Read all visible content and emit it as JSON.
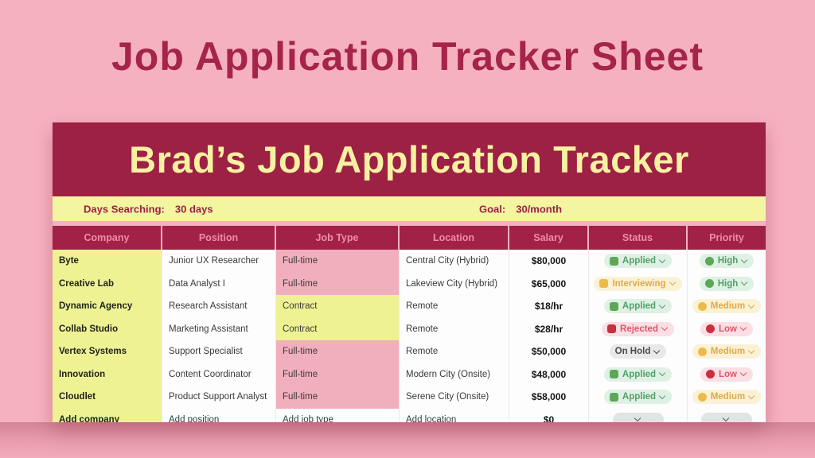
{
  "page": {
    "title": "Job Application Tracker Sheet"
  },
  "sheet": {
    "banner_title": "Brad’s Job Application Tracker",
    "info_bar": {
      "days_label": "Days Searching:",
      "days_value": "30 days",
      "goal_label": "Goal:",
      "goal_value": "30/month"
    },
    "table": {
      "headers": [
        "Company",
        "Position",
        "Job Type",
        "Location",
        "Salary",
        "Status",
        "Priority"
      ],
      "rows": [
        {
          "company": "Byte",
          "position": "Junior UX Researcher",
          "job_type": "Full-time",
          "job_type_variant": "pink",
          "location": "Central City (Hybrid)",
          "salary": "$80,000",
          "status": {
            "label": "Applied",
            "variant": "green",
            "icon": true
          },
          "priority": {
            "label": "High",
            "variant": "green",
            "icon": true
          }
        },
        {
          "company": "Creative Lab",
          "position": "Data Analyst I",
          "job_type": "Full-time",
          "job_type_variant": "pink",
          "location": "Lakeview City (Hybrid)",
          "salary": "$65,000",
          "status": {
            "label": "Interviewing",
            "variant": "amber",
            "icon": true
          },
          "priority": {
            "label": "High",
            "variant": "green",
            "icon": true
          }
        },
        {
          "company": "Dynamic Agency",
          "position": "Research Assistant",
          "job_type": "Contract",
          "job_type_variant": "yellow",
          "location": "Remote",
          "salary": "$18/hr",
          "status": {
            "label": "Applied",
            "variant": "green",
            "icon": true
          },
          "priority": {
            "label": "Medium",
            "variant": "amber",
            "icon": true
          }
        },
        {
          "company": "Collab Studio",
          "position": "Marketing Assistant",
          "job_type": "Contract",
          "job_type_variant": "yellow",
          "location": "Remote",
          "salary": "$28/hr",
          "status": {
            "label": "Rejected",
            "variant": "red",
            "icon": true
          },
          "priority": {
            "label": "Low",
            "variant": "red",
            "icon": true
          }
        },
        {
          "company": "Vertex Systems",
          "position": "Support Specialist",
          "job_type": "Full-time",
          "job_type_variant": "pink",
          "location": "Remote",
          "salary": "$50,000",
          "status": {
            "label": "On Hold",
            "variant": "gray",
            "icon": false
          },
          "priority": {
            "label": "Medium",
            "variant": "amber",
            "icon": true
          }
        },
        {
          "company": "Innovation",
          "position": "Content Coordinator",
          "job_type": "Full-time",
          "job_type_variant": "pink",
          "location": "Modern City (Onsite)",
          "salary": "$48,000",
          "status": {
            "label": "Applied",
            "variant": "green",
            "icon": true
          },
          "priority": {
            "label": "Low",
            "variant": "red",
            "icon": true
          }
        },
        {
          "company": "Cloudlet",
          "position": "Product Support Analyst",
          "job_type": "Full-time",
          "job_type_variant": "pink",
          "location": "Serene City (Onsite)",
          "salary": "$58,000",
          "status": {
            "label": "Applied",
            "variant": "green",
            "icon": true
          },
          "priority": {
            "label": "Medium",
            "variant": "amber",
            "icon": true
          }
        },
        {
          "company": "Add company",
          "position": "Add position",
          "job_type": "Add job type",
          "job_type_variant": "plain",
          "location": "Add location",
          "salary": "$0",
          "status": {
            "label": "",
            "variant": "empty",
            "icon": false
          },
          "priority": {
            "label": "",
            "variant": "empty",
            "icon": false
          }
        }
      ]
    }
  },
  "colors": {
    "page_bg": "#f6b1bf",
    "title_color": "#a52449",
    "banner_bg": "#9d2045",
    "banner_text": "#f8f1a2",
    "info_bg": "#f3f5a1",
    "info_text": "#9c2043",
    "header_bg": "#a22146",
    "header_text": "#ef8da4",
    "yellow_cell": "#eef293",
    "pink_cell": "#f1aebc",
    "pill_green": "#5ea758",
    "pill_amber": "#ecba4a",
    "pill_red": "#cb2e3e"
  }
}
